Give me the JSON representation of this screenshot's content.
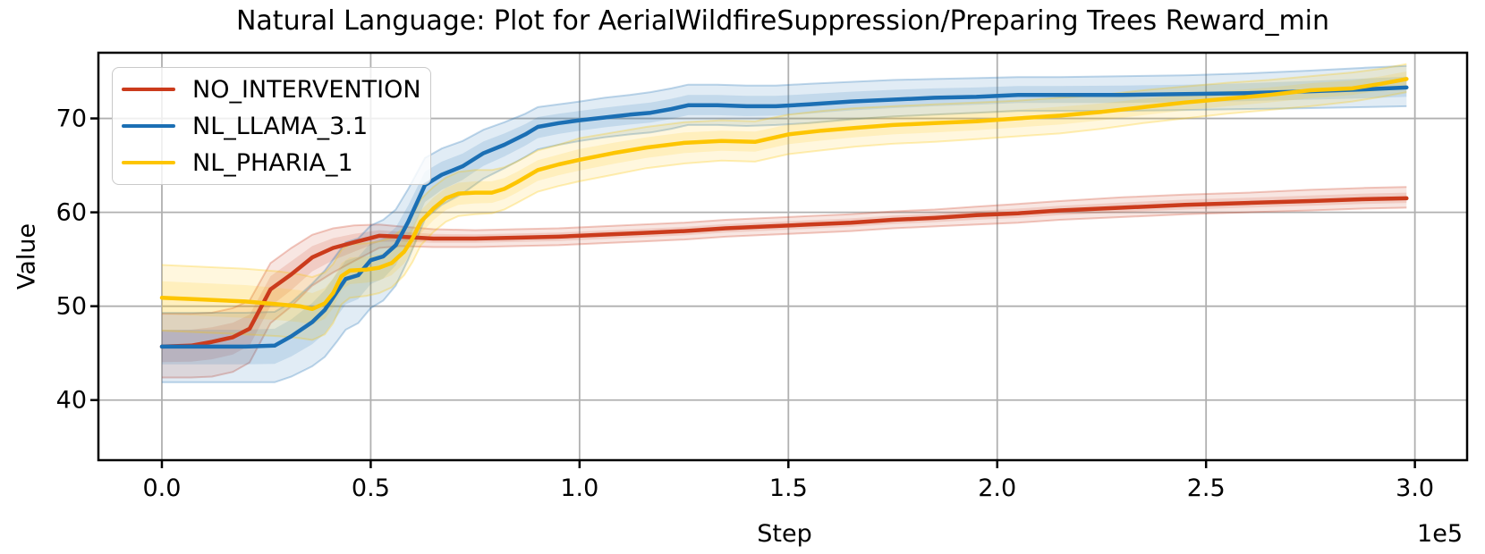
{
  "title": "Natural Language: Plot for AerialWildfireSuppression/Preparing Trees Reward_min",
  "axes": {
    "xlabel": "Step",
    "ylabel": "Value",
    "offset_label": "1e5"
  },
  "colors": {
    "grid": "#b0b0b0",
    "frame": "#000000",
    "legend_border": "#c9c9c9",
    "text": "#000000"
  },
  "chart_data": {
    "type": "line",
    "title": "Natural Language: Plot for AerialWildfireSuppression/Preparing Trees Reward_min",
    "xlabel": "Step",
    "ylabel": "Value",
    "x_unit": "1e5 steps",
    "xlim": [
      -0.152,
      3.125
    ],
    "ylim": [
      33.6,
      77.0
    ],
    "xticks": [
      {
        "value": 0.0,
        "label": "0.0"
      },
      {
        "value": 0.5,
        "label": "0.5"
      },
      {
        "value": 1.0,
        "label": "1.0"
      },
      {
        "value": 1.5,
        "label": "1.5"
      },
      {
        "value": 2.0,
        "label": "2.0"
      },
      {
        "value": 2.5,
        "label": "2.5"
      },
      {
        "value": 3.0,
        "label": "3.0"
      }
    ],
    "yticks": [
      {
        "value": 40,
        "label": "40"
      },
      {
        "value": 50,
        "label": "50"
      },
      {
        "value": 60,
        "label": "60"
      },
      {
        "value": 70,
        "label": "70"
      }
    ],
    "grid": true,
    "legend_position": "upper-left",
    "series": [
      {
        "name": "NO_INTERVENTION",
        "color": "#cb3b1c",
        "points": [
          [
            0.0,
            45.7,
            42.4,
            49.2
          ],
          [
            0.07,
            45.8,
            42.4,
            49.2
          ],
          [
            0.12,
            46.2,
            42.5,
            49.3
          ],
          [
            0.17,
            46.7,
            43.0,
            49.8
          ],
          [
            0.21,
            47.6,
            44.0,
            50.6
          ],
          [
            0.26,
            51.8,
            48.2,
            54.6
          ],
          [
            0.31,
            53.4,
            50.0,
            56.2
          ],
          [
            0.36,
            55.2,
            52.2,
            57.6
          ],
          [
            0.41,
            56.2,
            53.6,
            58.3
          ],
          [
            0.46,
            56.8,
            54.8,
            58.6
          ],
          [
            0.52,
            57.5,
            56.2,
            58.7
          ],
          [
            0.57,
            57.4,
            56.4,
            58.5
          ],
          [
            0.65,
            57.2,
            56.3,
            58.2
          ],
          [
            0.75,
            57.2,
            56.3,
            58.1
          ],
          [
            0.85,
            57.3,
            56.4,
            58.2
          ],
          [
            0.95,
            57.4,
            56.5,
            58.3
          ],
          [
            1.05,
            57.6,
            56.7,
            58.5
          ],
          [
            1.15,
            57.8,
            56.9,
            58.7
          ],
          [
            1.25,
            58.0,
            57.1,
            58.9
          ],
          [
            1.35,
            58.3,
            57.4,
            59.2
          ],
          [
            1.45,
            58.5,
            57.6,
            59.4
          ],
          [
            1.55,
            58.7,
            57.8,
            59.6
          ],
          [
            1.65,
            58.9,
            58.0,
            59.8
          ],
          [
            1.75,
            59.2,
            58.3,
            60.1
          ],
          [
            1.85,
            59.4,
            58.5,
            60.3
          ],
          [
            1.95,
            59.7,
            58.7,
            60.6
          ],
          [
            2.05,
            59.9,
            58.9,
            60.9
          ],
          [
            2.15,
            60.2,
            59.2,
            61.2
          ],
          [
            2.3,
            60.5,
            59.5,
            61.6
          ],
          [
            2.45,
            60.8,
            59.8,
            61.9
          ],
          [
            2.6,
            61.0,
            60.0,
            62.1
          ],
          [
            2.75,
            61.2,
            60.2,
            62.4
          ],
          [
            2.88,
            61.4,
            60.4,
            62.6
          ],
          [
            2.98,
            61.5,
            60.5,
            62.7
          ]
        ]
      },
      {
        "name": "NL_LLAMA_3.1",
        "color": "#1b6fb4",
        "points": [
          [
            0.0,
            45.7,
            41.9,
            49.3
          ],
          [
            0.1,
            45.7,
            41.9,
            49.3
          ],
          [
            0.2,
            45.7,
            41.9,
            49.3
          ],
          [
            0.27,
            45.8,
            41.9,
            49.4
          ],
          [
            0.31,
            46.8,
            42.5,
            50.4
          ],
          [
            0.36,
            48.3,
            43.6,
            52.4
          ],
          [
            0.39,
            49.6,
            44.6,
            53.8
          ],
          [
            0.42,
            51.6,
            46.3,
            55.6
          ],
          [
            0.44,
            52.9,
            47.5,
            56.8
          ],
          [
            0.47,
            53.3,
            48.2,
            57.2
          ],
          [
            0.5,
            54.9,
            49.8,
            58.6
          ],
          [
            0.53,
            55.3,
            50.6,
            59.2
          ],
          [
            0.56,
            56.5,
            52.2,
            60.3
          ],
          [
            0.59,
            59.0,
            55.0,
            62.5
          ],
          [
            0.63,
            62.9,
            59.3,
            65.8
          ],
          [
            0.67,
            64.0,
            60.8,
            66.8
          ],
          [
            0.72,
            64.9,
            62.0,
            67.6
          ],
          [
            0.77,
            66.3,
            63.6,
            68.8
          ],
          [
            0.82,
            67.2,
            64.7,
            69.6
          ],
          [
            0.87,
            68.3,
            65.9,
            70.5
          ],
          [
            0.9,
            69.1,
            66.7,
            71.2
          ],
          [
            0.95,
            69.5,
            67.2,
            71.5
          ],
          [
            1.0,
            69.8,
            67.6,
            71.8
          ],
          [
            1.06,
            70.1,
            68.0,
            72.2
          ],
          [
            1.12,
            70.4,
            68.3,
            72.5
          ],
          [
            1.17,
            70.6,
            68.5,
            72.8
          ],
          [
            1.22,
            71.0,
            68.9,
            73.2
          ],
          [
            1.26,
            71.4,
            69.3,
            73.6
          ],
          [
            1.33,
            71.4,
            69.3,
            73.6
          ],
          [
            1.4,
            71.3,
            69.2,
            73.5
          ],
          [
            1.47,
            71.3,
            69.3,
            73.5
          ],
          [
            1.55,
            71.5,
            69.5,
            73.7
          ],
          [
            1.65,
            71.8,
            69.9,
            73.9
          ],
          [
            1.75,
            72.0,
            70.2,
            74.1
          ],
          [
            1.85,
            72.2,
            70.4,
            74.2
          ],
          [
            1.95,
            72.3,
            70.6,
            74.3
          ],
          [
            2.05,
            72.5,
            70.8,
            74.4
          ],
          [
            2.15,
            72.5,
            70.8,
            74.4
          ],
          [
            2.3,
            72.5,
            70.8,
            74.5
          ],
          [
            2.45,
            72.6,
            70.9,
            74.6
          ],
          [
            2.6,
            72.7,
            71.0,
            74.8
          ],
          [
            2.75,
            72.9,
            71.1,
            75.1
          ],
          [
            2.88,
            73.1,
            71.2,
            75.4
          ],
          [
            2.98,
            73.3,
            71.3,
            75.6
          ]
        ]
      },
      {
        "name": "NL_PHARIA_1",
        "color": "#fdc500",
        "points": [
          [
            0.0,
            50.9,
            47.4,
            54.4
          ],
          [
            0.1,
            50.7,
            47.2,
            54.2
          ],
          [
            0.2,
            50.5,
            47.0,
            54.0
          ],
          [
            0.28,
            50.2,
            46.8,
            53.7
          ],
          [
            0.33,
            50.0,
            46.6,
            53.4
          ],
          [
            0.36,
            49.7,
            46.4,
            53.1
          ],
          [
            0.39,
            50.3,
            47.0,
            53.6
          ],
          [
            0.41,
            51.4,
            48.2,
            54.5
          ],
          [
            0.43,
            53.2,
            50.2,
            56.0
          ],
          [
            0.45,
            53.8,
            50.9,
            56.6
          ],
          [
            0.49,
            53.9,
            51.1,
            56.7
          ],
          [
            0.52,
            54.1,
            51.4,
            56.9
          ],
          [
            0.55,
            54.6,
            52.0,
            57.3
          ],
          [
            0.58,
            55.8,
            53.3,
            58.4
          ],
          [
            0.6,
            57.2,
            54.7,
            59.7
          ],
          [
            0.62,
            59.0,
            56.5,
            61.4
          ],
          [
            0.65,
            60.4,
            57.9,
            62.7
          ],
          [
            0.68,
            61.5,
            59.0,
            63.7
          ],
          [
            0.71,
            62.0,
            59.6,
            64.3
          ],
          [
            0.75,
            62.1,
            59.8,
            64.5
          ],
          [
            0.79,
            62.1,
            59.9,
            64.5
          ],
          [
            0.82,
            62.5,
            60.3,
            64.8
          ],
          [
            0.85,
            63.2,
            61.0,
            65.4
          ],
          [
            0.9,
            64.5,
            62.2,
            66.6
          ],
          [
            0.95,
            65.1,
            62.8,
            67.2
          ],
          [
            1.0,
            65.6,
            63.3,
            67.9
          ],
          [
            1.08,
            66.3,
            64.0,
            68.5
          ],
          [
            1.16,
            66.9,
            64.7,
            69.1
          ],
          [
            1.25,
            67.4,
            65.2,
            69.6
          ],
          [
            1.34,
            67.6,
            65.5,
            69.8
          ],
          [
            1.42,
            67.5,
            65.4,
            69.7
          ],
          [
            1.5,
            68.3,
            66.2,
            70.4
          ],
          [
            1.58,
            68.7,
            66.6,
            70.8
          ],
          [
            1.66,
            69.0,
            67.0,
            71.1
          ],
          [
            1.75,
            69.3,
            67.3,
            71.3
          ],
          [
            1.85,
            69.5,
            67.5,
            71.5
          ],
          [
            1.95,
            69.7,
            67.8,
            71.7
          ],
          [
            2.05,
            70.0,
            68.1,
            71.9
          ],
          [
            2.15,
            70.3,
            68.4,
            72.2
          ],
          [
            2.25,
            70.7,
            68.9,
            72.5
          ],
          [
            2.35,
            71.2,
            69.5,
            73.0
          ],
          [
            2.45,
            71.7,
            70.0,
            73.4
          ],
          [
            2.55,
            72.1,
            70.5,
            73.8
          ],
          [
            2.65,
            72.5,
            70.9,
            74.1
          ],
          [
            2.75,
            73.0,
            71.3,
            74.5
          ],
          [
            2.85,
            73.2,
            71.8,
            74.9
          ],
          [
            2.92,
            73.7,
            72.3,
            75.3
          ],
          [
            2.98,
            74.2,
            72.8,
            75.8
          ]
        ]
      }
    ]
  }
}
